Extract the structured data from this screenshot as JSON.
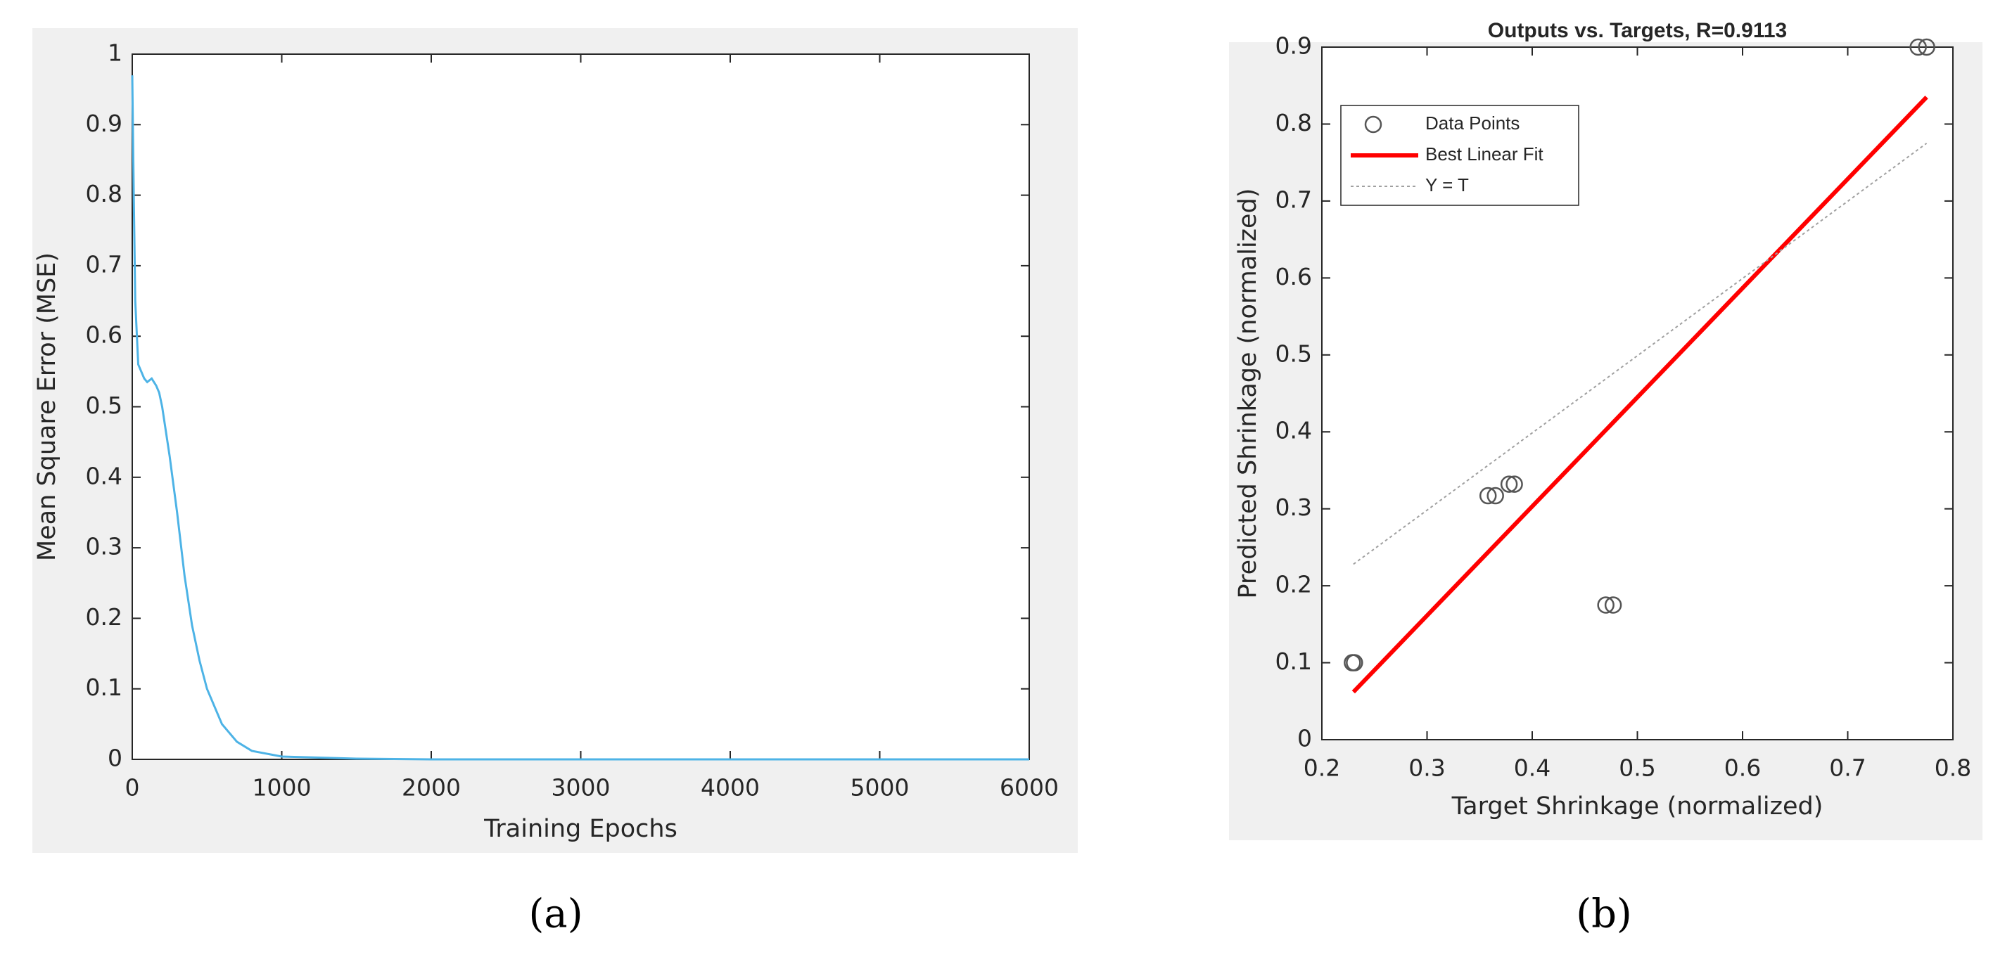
{
  "chart_data": [
    {
      "type": "line",
      "caption": "(a)",
      "xlabel": "Training Epochs",
      "ylabel": "Mean Square Error (MSE)",
      "x": [
        0,
        10,
        20,
        40,
        80,
        100,
        130,
        160,
        180,
        200,
        250,
        300,
        350,
        400,
        450,
        500,
        600,
        700,
        800,
        1000,
        1500,
        2000,
        6000
      ],
      "values": [
        0.97,
        0.8,
        0.65,
        0.56,
        0.54,
        0.535,
        0.54,
        0.53,
        0.52,
        0.5,
        0.43,
        0.35,
        0.26,
        0.19,
        0.14,
        0.1,
        0.05,
        0.025,
        0.012,
        0.004,
        0.001,
        0,
        0
      ],
      "color": "#4db3e6",
      "xlim": [
        0,
        6000
      ],
      "xticks": [
        0,
        1000,
        2000,
        3000,
        4000,
        5000,
        6000
      ],
      "ylim": [
        0,
        1
      ],
      "yticks": [
        0,
        0.1,
        0.2,
        0.3,
        0.4,
        0.5,
        0.6,
        0.7,
        0.8,
        0.9,
        1
      ]
    },
    {
      "type": "scatter",
      "caption": "(b)",
      "title": "Outputs vs. Targets, R=0.9113",
      "xlabel": "Target Shrinkage (normalized)",
      "ylabel": "Predicted Shrinkage (normalized)",
      "series": [
        {
          "name": "Data Points",
          "color": "#555555",
          "style": "markers",
          "x": [
            0.229,
            0.231,
            0.358,
            0.365,
            0.378,
            0.383,
            0.47,
            0.477,
            0.767,
            0.775
          ],
          "values": [
            0.1,
            0.1,
            0.317,
            0.317,
            0.332,
            0.332,
            0.175,
            0.175,
            0.9,
            0.9
          ]
        },
        {
          "name": "Best Linear Fit",
          "color": "#ff0000",
          "style": "solid",
          "x": [
            0.23,
            0.775
          ],
          "values": [
            0.062,
            0.835
          ]
        },
        {
          "name": "Y = T",
          "color": "#a0a0a0",
          "style": "dotted",
          "x": [
            0.23,
            0.775
          ],
          "values": [
            0.228,
            0.775
          ]
        }
      ],
      "legend": "upper left",
      "xlim": [
        0.2,
        0.8
      ],
      "xticks": [
        0.2,
        0.3,
        0.4,
        0.5,
        0.6,
        0.7,
        0.8
      ],
      "ylim": [
        0,
        0.9
      ],
      "yticks": [
        0,
        0.1,
        0.2,
        0.3,
        0.4,
        0.5,
        0.6,
        0.7,
        0.8,
        0.9
      ]
    }
  ]
}
